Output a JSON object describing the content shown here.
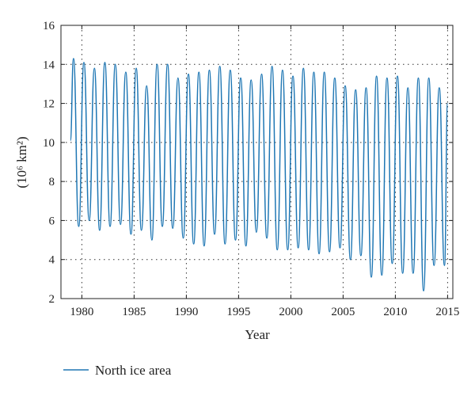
{
  "chart_data": {
    "type": "line",
    "title": "",
    "xlabel": "Year",
    "ylabel": "(10⁶ km²)",
    "xlim": [
      1978,
      2015.5
    ],
    "ylim": [
      2,
      16
    ],
    "xticks": [
      1980,
      1985,
      1990,
      1995,
      2000,
      2005,
      2010,
      2015
    ],
    "yticks": [
      2,
      4,
      6,
      8,
      10,
      12,
      14,
      16
    ],
    "grid": true,
    "legend_position": "bottom-left",
    "series": [
      {
        "name": "North ice area",
        "color": "#1f77b4",
        "x": [
          1978.9,
          1979.2,
          1979.7,
          1980.2,
          1980.7,
          1981.2,
          1981.7,
          1982.2,
          1982.7,
          1983.2,
          1983.7,
          1984.2,
          1984.7,
          1985.2,
          1985.7,
          1986.2,
          1986.7,
          1987.2,
          1987.7,
          1988.2,
          1988.7,
          1989.2,
          1989.7,
          1990.2,
          1990.7,
          1991.2,
          1991.7,
          1992.2,
          1992.7,
          1993.2,
          1993.7,
          1994.2,
          1994.7,
          1995.2,
          1995.7,
          1996.2,
          1996.7,
          1997.2,
          1997.7,
          1998.2,
          1998.7,
          1999.2,
          1999.7,
          2000.2,
          2000.7,
          2001.2,
          2001.7,
          2002.2,
          2002.7,
          2003.2,
          2003.7,
          2004.2,
          2004.7,
          2005.2,
          2005.7,
          2006.2,
          2006.7,
          2007.2,
          2007.7,
          2008.2,
          2008.7,
          2009.2,
          2009.7,
          2010.2,
          2010.7,
          2011.2,
          2011.7,
          2012.2,
          2012.7,
          2013.2,
          2013.7,
          2014.2,
          2014.7,
          2015.0
        ],
        "y": [
          10.1,
          14.3,
          5.7,
          14.1,
          6.0,
          13.8,
          5.5,
          14.1,
          5.7,
          14.0,
          5.8,
          13.6,
          5.3,
          13.8,
          5.5,
          12.9,
          5.0,
          14.0,
          5.7,
          14.0,
          5.6,
          13.3,
          5.1,
          13.5,
          4.8,
          13.6,
          4.7,
          13.7,
          5.3,
          13.9,
          4.8,
          13.7,
          5.0,
          13.3,
          4.7,
          13.2,
          5.4,
          13.5,
          5.1,
          13.9,
          4.5,
          13.7,
          4.5,
          13.4,
          4.6,
          13.8,
          4.5,
          13.6,
          4.3,
          13.6,
          4.4,
          13.3,
          4.6,
          12.9,
          4.0,
          12.7,
          4.2,
          12.8,
          3.1,
          13.4,
          3.2,
          13.3,
          3.8,
          13.4,
          3.3,
          12.8,
          3.3,
          13.3,
          2.4,
          13.3,
          3.7,
          12.8,
          3.7,
          12.0
        ]
      }
    ]
  }
}
